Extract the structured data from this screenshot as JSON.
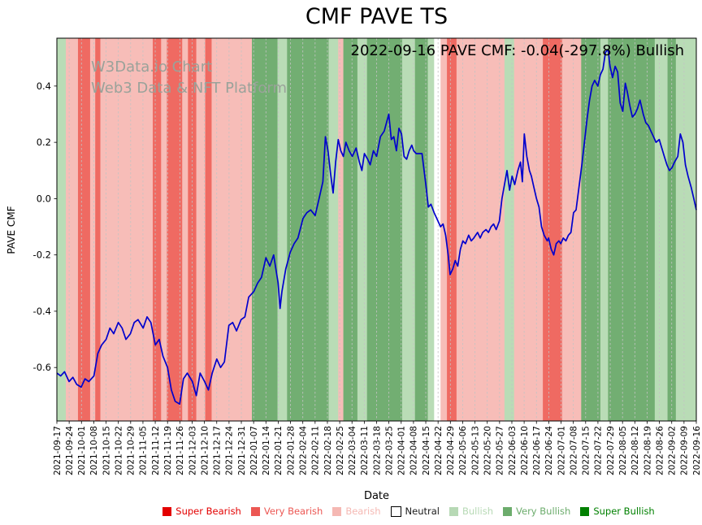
{
  "title": "CMF PAVE TS",
  "annotation": "2022-09-16 PAVE CMF: -0.04(-297.8%) Bullish",
  "watermark": {
    "line1": "W3Data.io Chart",
    "line2": "Web3 Data & NFT Platform"
  },
  "axes": {
    "y_label": "PAVE CMF",
    "x_label": "Date"
  },
  "legend": {
    "items": [
      {
        "label": "Super Bearish",
        "color": "#e30000",
        "label_color": "#e30000"
      },
      {
        "label": "Very Bearish",
        "color": "#ec5753",
        "label_color": "#ec5753"
      },
      {
        "label": "Bearish",
        "color": "#f5b8b3",
        "label_color": "#f5b8b3"
      },
      {
        "label": "Neutral",
        "color": "#ffffff",
        "label_color": "#1a1a1a"
      },
      {
        "label": "Bullish",
        "color": "#b7d9b5",
        "label_color": "#b7d9b5"
      },
      {
        "label": "Very Bullish",
        "color": "#6cac6c",
        "label_color": "#6cac6c"
      },
      {
        "label": "Super Bullish",
        "color": "#008000",
        "label_color": "#008000"
      }
    ]
  },
  "chart_data": {
    "type": "line",
    "title": "CMF PAVE TS",
    "xlabel": "Date",
    "ylabel": "PAVE CMF",
    "line_color": "#0000cd",
    "grid": "vertical-dashed",
    "y_range": [
      -0.79,
      0.57
    ],
    "y_tick_values": [
      0.4,
      0.2,
      0.0,
      -0.2,
      -0.4,
      -0.6
    ],
    "y_tick_labels": [
      "0.4",
      "0.2",
      "0.0",
      "-0.2",
      "-0.4",
      "-0.6"
    ],
    "x_tick_labels": [
      "2021-09-17",
      "2021-09-24",
      "2021-10-01",
      "2021-10-08",
      "2021-10-15",
      "2021-10-22",
      "2021-10-29",
      "2021-11-05",
      "2021-11-12",
      "2021-11-19",
      "2021-11-26",
      "2021-12-03",
      "2021-12-10",
      "2021-12-17",
      "2021-12-24",
      "2021-12-31",
      "2022-01-07",
      "2022-01-14",
      "2022-01-21",
      "2022-01-28",
      "2022-02-04",
      "2022-02-11",
      "2022-02-18",
      "2022-02-25",
      "2022-03-04",
      "2022-03-11",
      "2022-03-18",
      "2022-03-25",
      "2022-04-01",
      "2022-04-08",
      "2022-04-15",
      "2022-04-22",
      "2022-04-29",
      "2022-05-06",
      "2022-05-13",
      "2022-05-20",
      "2022-05-27",
      "2022-06-03",
      "2022-06-10",
      "2022-06-17",
      "2022-06-24",
      "2022-07-01",
      "2022-07-08",
      "2022-07-15",
      "2022-07-22",
      "2022-07-29",
      "2022-08-05",
      "2022-08-12",
      "2022-08-19",
      "2022-08-26",
      "2022-09-02",
      "2022-09-09",
      "2022-09-16"
    ],
    "band_colors": {
      "super_bearish": "#e30000",
      "very_bearish": "#ef6a62",
      "bearish": "#f7bdb8",
      "neutral": "#ffffff",
      "bullish": "#b9dcb6",
      "very_bullish": "#72ae72",
      "super_bullish": "#008000"
    },
    "bands": [
      {
        "start": 0.0,
        "end": 0.014,
        "category": "bullish"
      },
      {
        "start": 0.014,
        "end": 0.033,
        "category": "bearish"
      },
      {
        "start": 0.033,
        "end": 0.052,
        "category": "very_bearish"
      },
      {
        "start": 0.052,
        "end": 0.06,
        "category": "bearish"
      },
      {
        "start": 0.06,
        "end": 0.068,
        "category": "very_bearish"
      },
      {
        "start": 0.068,
        "end": 0.15,
        "category": "bearish"
      },
      {
        "start": 0.15,
        "end": 0.163,
        "category": "very_bearish"
      },
      {
        "start": 0.163,
        "end": 0.172,
        "category": "bearish"
      },
      {
        "start": 0.172,
        "end": 0.196,
        "category": "very_bearish"
      },
      {
        "start": 0.196,
        "end": 0.205,
        "category": "bearish"
      },
      {
        "start": 0.205,
        "end": 0.218,
        "category": "very_bearish"
      },
      {
        "start": 0.218,
        "end": 0.232,
        "category": "bearish"
      },
      {
        "start": 0.232,
        "end": 0.242,
        "category": "very_bearish"
      },
      {
        "start": 0.242,
        "end": 0.305,
        "category": "bearish"
      },
      {
        "start": 0.305,
        "end": 0.345,
        "category": "very_bullish"
      },
      {
        "start": 0.345,
        "end": 0.36,
        "category": "bullish"
      },
      {
        "start": 0.36,
        "end": 0.425,
        "category": "very_bullish"
      },
      {
        "start": 0.425,
        "end": 0.44,
        "category": "bullish"
      },
      {
        "start": 0.44,
        "end": 0.448,
        "category": "bearish"
      },
      {
        "start": 0.448,
        "end": 0.47,
        "category": "very_bullish"
      },
      {
        "start": 0.47,
        "end": 0.485,
        "category": "bullish"
      },
      {
        "start": 0.485,
        "end": 0.54,
        "category": "very_bullish"
      },
      {
        "start": 0.54,
        "end": 0.56,
        "category": "bullish"
      },
      {
        "start": 0.56,
        "end": 0.58,
        "category": "very_bullish"
      },
      {
        "start": 0.58,
        "end": 0.59,
        "category": "bullish"
      },
      {
        "start": 0.59,
        "end": 0.6,
        "category": "neutral"
      },
      {
        "start": 0.6,
        "end": 0.61,
        "category": "bearish"
      },
      {
        "start": 0.61,
        "end": 0.625,
        "category": "very_bearish"
      },
      {
        "start": 0.625,
        "end": 0.7,
        "category": "bearish"
      },
      {
        "start": 0.7,
        "end": 0.715,
        "category": "bullish"
      },
      {
        "start": 0.715,
        "end": 0.76,
        "category": "bearish"
      },
      {
        "start": 0.76,
        "end": 0.79,
        "category": "very_bearish"
      },
      {
        "start": 0.79,
        "end": 0.82,
        "category": "bearish"
      },
      {
        "start": 0.82,
        "end": 0.85,
        "category": "very_bullish"
      },
      {
        "start": 0.85,
        "end": 0.862,
        "category": "bullish"
      },
      {
        "start": 0.862,
        "end": 0.935,
        "category": "very_bullish"
      },
      {
        "start": 0.935,
        "end": 0.955,
        "category": "bullish"
      },
      {
        "start": 0.955,
        "end": 0.968,
        "category": "very_bullish"
      },
      {
        "start": 0.968,
        "end": 1.0,
        "category": "bullish"
      }
    ],
    "series": [
      {
        "name": "PAVE CMF",
        "points": [
          [
            0.0,
            -0.62
          ],
          [
            0.006,
            -0.63
          ],
          [
            0.012,
            -0.615
          ],
          [
            0.019,
            -0.65
          ],
          [
            0.025,
            -0.635
          ],
          [
            0.031,
            -0.66
          ],
          [
            0.038,
            -0.67
          ],
          [
            0.044,
            -0.64
          ],
          [
            0.05,
            -0.65
          ],
          [
            0.058,
            -0.63
          ],
          [
            0.064,
            -0.55
          ],
          [
            0.07,
            -0.52
          ],
          [
            0.077,
            -0.5
          ],
          [
            0.083,
            -0.46
          ],
          [
            0.089,
            -0.48
          ],
          [
            0.096,
            -0.44
          ],
          [
            0.102,
            -0.46
          ],
          [
            0.108,
            -0.5
          ],
          [
            0.115,
            -0.48
          ],
          [
            0.121,
            -0.44
          ],
          [
            0.127,
            -0.43
          ],
          [
            0.135,
            -0.46
          ],
          [
            0.141,
            -0.42
          ],
          [
            0.147,
            -0.44
          ],
          [
            0.154,
            -0.52
          ],
          [
            0.16,
            -0.5
          ],
          [
            0.166,
            -0.56
          ],
          [
            0.173,
            -0.6
          ],
          [
            0.179,
            -0.68
          ],
          [
            0.185,
            -0.72
          ],
          [
            0.192,
            -0.73
          ],
          [
            0.198,
            -0.64
          ],
          [
            0.204,
            -0.62
          ],
          [
            0.212,
            -0.65
          ],
          [
            0.218,
            -0.7
          ],
          [
            0.224,
            -0.62
          ],
          [
            0.231,
            -0.65
          ],
          [
            0.237,
            -0.68
          ],
          [
            0.243,
            -0.62
          ],
          [
            0.25,
            -0.57
          ],
          [
            0.256,
            -0.6
          ],
          [
            0.262,
            -0.58
          ],
          [
            0.269,
            -0.45
          ],
          [
            0.275,
            -0.44
          ],
          [
            0.281,
            -0.47
          ],
          [
            0.288,
            -0.43
          ],
          [
            0.294,
            -0.42
          ],
          [
            0.3,
            -0.35
          ],
          [
            0.308,
            -0.33
          ],
          [
            0.314,
            -0.3
          ],
          [
            0.32,
            -0.28
          ],
          [
            0.327,
            -0.21
          ],
          [
            0.333,
            -0.24
          ],
          [
            0.339,
            -0.2
          ],
          [
            0.346,
            -0.3
          ],
          [
            0.349,
            -0.39
          ],
          [
            0.352,
            -0.33
          ],
          [
            0.358,
            -0.25
          ],
          [
            0.365,
            -0.19
          ],
          [
            0.371,
            -0.16
          ],
          [
            0.377,
            -0.14
          ],
          [
            0.385,
            -0.07
          ],
          [
            0.391,
            -0.05
          ],
          [
            0.397,
            -0.04
          ],
          [
            0.404,
            -0.06
          ],
          [
            0.41,
            0.0
          ],
          [
            0.416,
            0.06
          ],
          [
            0.42,
            0.22
          ],
          [
            0.424,
            0.17
          ],
          [
            0.428,
            0.09
          ],
          [
            0.432,
            0.02
          ],
          [
            0.436,
            0.13
          ],
          [
            0.44,
            0.21
          ],
          [
            0.444,
            0.17
          ],
          [
            0.448,
            0.15
          ],
          [
            0.452,
            0.2
          ],
          [
            0.457,
            0.17
          ],
          [
            0.462,
            0.15
          ],
          [
            0.468,
            0.18
          ],
          [
            0.473,
            0.13
          ],
          [
            0.477,
            0.1
          ],
          [
            0.481,
            0.16
          ],
          [
            0.486,
            0.14
          ],
          [
            0.49,
            0.12
          ],
          [
            0.495,
            0.17
          ],
          [
            0.5,
            0.15
          ],
          [
            0.506,
            0.22
          ],
          [
            0.512,
            0.24
          ],
          [
            0.519,
            0.3
          ],
          [
            0.523,
            0.21
          ],
          [
            0.527,
            0.22
          ],
          [
            0.531,
            0.17
          ],
          [
            0.535,
            0.25
          ],
          [
            0.539,
            0.23
          ],
          [
            0.543,
            0.15
          ],
          [
            0.547,
            0.14
          ],
          [
            0.551,
            0.17
          ],
          [
            0.555,
            0.19
          ],
          [
            0.558,
            0.17
          ],
          [
            0.562,
            0.16
          ],
          [
            0.567,
            0.16
          ],
          [
            0.571,
            0.16
          ],
          [
            0.577,
            0.05
          ],
          [
            0.581,
            -0.03
          ],
          [
            0.585,
            -0.02
          ],
          [
            0.59,
            -0.05
          ],
          [
            0.596,
            -0.08
          ],
          [
            0.6,
            -0.1
          ],
          [
            0.604,
            -0.09
          ],
          [
            0.608,
            -0.13
          ],
          [
            0.612,
            -0.2
          ],
          [
            0.615,
            -0.27
          ],
          [
            0.619,
            -0.25
          ],
          [
            0.623,
            -0.22
          ],
          [
            0.627,
            -0.24
          ],
          [
            0.631,
            -0.18
          ],
          [
            0.635,
            -0.15
          ],
          [
            0.639,
            -0.16
          ],
          [
            0.644,
            -0.13
          ],
          [
            0.648,
            -0.15
          ],
          [
            0.652,
            -0.14
          ],
          [
            0.658,
            -0.12
          ],
          [
            0.662,
            -0.14
          ],
          [
            0.666,
            -0.12
          ],
          [
            0.671,
            -0.11
          ],
          [
            0.675,
            -0.12
          ],
          [
            0.679,
            -0.1
          ],
          [
            0.683,
            -0.09
          ],
          [
            0.687,
            -0.11
          ],
          [
            0.692,
            -0.08
          ],
          [
            0.696,
            0.0
          ],
          [
            0.7,
            0.05
          ],
          [
            0.704,
            0.1
          ],
          [
            0.708,
            0.03
          ],
          [
            0.712,
            0.08
          ],
          [
            0.716,
            0.05
          ],
          [
            0.721,
            0.1
          ],
          [
            0.725,
            0.13
          ],
          [
            0.728,
            0.06
          ],
          [
            0.731,
            0.23
          ],
          [
            0.735,
            0.15
          ],
          [
            0.739,
            0.1
          ],
          [
            0.742,
            0.08
          ],
          [
            0.746,
            0.04
          ],
          [
            0.75,
            0.0
          ],
          [
            0.754,
            -0.03
          ],
          [
            0.758,
            -0.1
          ],
          [
            0.762,
            -0.13
          ],
          [
            0.767,
            -0.15
          ],
          [
            0.769,
            -0.14
          ],
          [
            0.773,
            -0.18
          ],
          [
            0.777,
            -0.2
          ],
          [
            0.781,
            -0.16
          ],
          [
            0.785,
            -0.15
          ],
          [
            0.788,
            -0.16
          ],
          [
            0.792,
            -0.14
          ],
          [
            0.796,
            -0.15
          ],
          [
            0.8,
            -0.13
          ],
          [
            0.804,
            -0.12
          ],
          [
            0.808,
            -0.05
          ],
          [
            0.812,
            -0.04
          ],
          [
            0.817,
            0.05
          ],
          [
            0.821,
            0.12
          ],
          [
            0.825,
            0.2
          ],
          [
            0.829,
            0.28
          ],
          [
            0.833,
            0.35
          ],
          [
            0.837,
            0.4
          ],
          [
            0.841,
            0.42
          ],
          [
            0.846,
            0.4
          ],
          [
            0.85,
            0.44
          ],
          [
            0.854,
            0.46
          ],
          [
            0.858,
            0.52
          ],
          [
            0.862,
            0.53
          ],
          [
            0.865,
            0.47
          ],
          [
            0.869,
            0.43
          ],
          [
            0.873,
            0.47
          ],
          [
            0.877,
            0.45
          ],
          [
            0.881,
            0.34
          ],
          [
            0.885,
            0.31
          ],
          [
            0.889,
            0.41
          ],
          [
            0.892,
            0.38
          ],
          [
            0.896,
            0.33
          ],
          [
            0.9,
            0.29
          ],
          [
            0.904,
            0.3
          ],
          [
            0.908,
            0.32
          ],
          [
            0.912,
            0.35
          ],
          [
            0.917,
            0.3
          ],
          [
            0.921,
            0.27
          ],
          [
            0.925,
            0.26
          ],
          [
            0.929,
            0.24
          ],
          [
            0.933,
            0.22
          ],
          [
            0.937,
            0.2
          ],
          [
            0.942,
            0.21
          ],
          [
            0.946,
            0.18
          ],
          [
            0.95,
            0.15
          ],
          [
            0.954,
            0.12
          ],
          [
            0.958,
            0.1
          ],
          [
            0.962,
            0.11
          ],
          [
            0.966,
            0.13
          ],
          [
            0.971,
            0.15
          ],
          [
            0.975,
            0.23
          ],
          [
            0.979,
            0.2
          ],
          [
            0.983,
            0.12
          ],
          [
            0.987,
            0.08
          ],
          [
            0.992,
            0.04
          ],
          [
            0.996,
            0.0
          ],
          [
            1.0,
            -0.04
          ]
        ]
      }
    ]
  }
}
